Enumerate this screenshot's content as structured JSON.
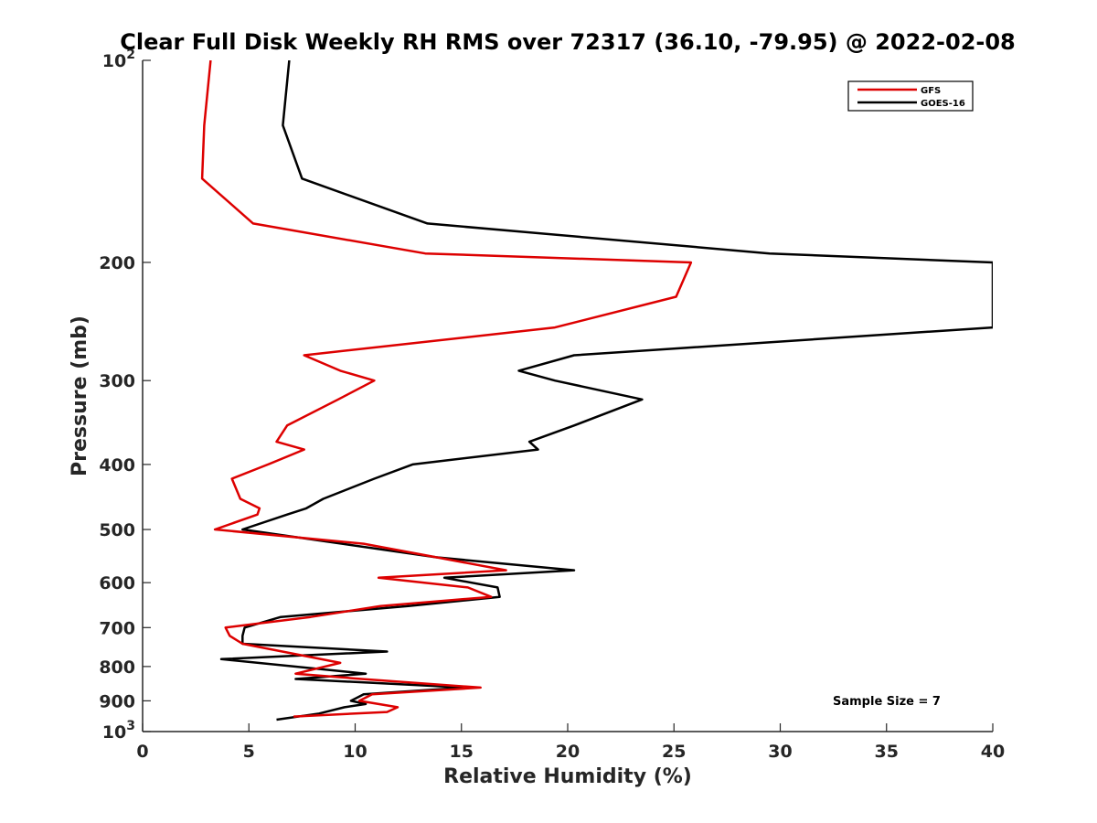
{
  "chart_data": {
    "type": "line",
    "title": "Clear Full Disk Weekly RH RMS over 72317 (36.10, -79.95) @ 2022-02-08",
    "xlabel": "Relative Humidity (%)",
    "ylabel": "Pressure (mb)",
    "xlim": [
      0,
      40
    ],
    "ylim": [
      100,
      1000
    ],
    "yscale": "log",
    "y_reversed": true,
    "grid": false,
    "x_ticks": [
      0,
      5,
      10,
      15,
      20,
      25,
      30,
      35,
      40
    ],
    "x_tick_labels": [
      "0",
      "5",
      "10",
      "15",
      "20",
      "25",
      "30",
      "35",
      "40"
    ],
    "y_ticks": [
      100,
      200,
      300,
      400,
      500,
      600,
      700,
      800,
      900,
      1000
    ],
    "y_tick_labels": [
      {
        "base": "10",
        "exp": "2"
      },
      {
        "base": "200",
        "exp": ""
      },
      {
        "base": "300",
        "exp": ""
      },
      {
        "base": "400",
        "exp": ""
      },
      {
        "base": "500",
        "exp": ""
      },
      {
        "base": "600",
        "exp": ""
      },
      {
        "base": "700",
        "exp": ""
      },
      {
        "base": "800",
        "exp": ""
      },
      {
        "base": "900",
        "exp": ""
      },
      {
        "base": "10",
        "exp": "3"
      }
    ],
    "legend_position": "top-right",
    "annotation": "Sample Size = 7",
    "series": [
      {
        "name": "GFS",
        "color": "#dd0000",
        "points": [
          [
            3.2,
            100
          ],
          [
            2.9,
            125
          ],
          [
            2.8,
            150
          ],
          [
            5.2,
            175
          ],
          [
            13.3,
            194
          ],
          [
            25.8,
            200
          ],
          [
            25.1,
            225
          ],
          [
            19.4,
            250
          ],
          [
            7.6,
            275
          ],
          [
            9.3,
            290
          ],
          [
            10.9,
            300
          ],
          [
            9.2,
            320
          ],
          [
            6.8,
            350
          ],
          [
            6.3,
            370
          ],
          [
            7.6,
            380
          ],
          [
            5.9,
            400
          ],
          [
            4.2,
            420
          ],
          [
            4.6,
            450
          ],
          [
            5.5,
            465
          ],
          [
            5.4,
            475
          ],
          [
            3.4,
            500
          ],
          [
            10.4,
            525
          ],
          [
            17.1,
            575
          ],
          [
            11.1,
            590
          ],
          [
            15.3,
            610
          ],
          [
            16.4,
            630
          ],
          [
            11.2,
            650
          ],
          [
            7.9,
            675
          ],
          [
            3.9,
            700
          ],
          [
            4.1,
            720
          ],
          [
            4.7,
            740
          ],
          [
            9.3,
            790
          ],
          [
            7.2,
            820
          ],
          [
            10.3,
            835
          ],
          [
            15.9,
            860
          ],
          [
            10.8,
            880
          ],
          [
            10.2,
            900
          ],
          [
            12.0,
            920
          ],
          [
            11.5,
            935
          ],
          [
            7.1,
            950
          ]
        ]
      },
      {
        "name": "GOES-16",
        "color": "#000000",
        "points": [
          [
            6.9,
            100
          ],
          [
            6.6,
            125
          ],
          [
            7.5,
            150
          ],
          [
            13.4,
            175
          ],
          [
            29.5,
            194
          ],
          [
            40.0,
            200
          ],
          [
            40.0,
            225
          ],
          [
            40.0,
            250
          ],
          [
            20.3,
            275
          ],
          [
            17.7,
            290
          ],
          [
            19.4,
            300
          ],
          [
            23.5,
            320
          ],
          [
            20.3,
            350
          ],
          [
            18.2,
            370
          ],
          [
            18.6,
            380
          ],
          [
            12.7,
            400
          ],
          [
            10.9,
            420
          ],
          [
            8.5,
            450
          ],
          [
            7.7,
            465
          ],
          [
            6.8,
            475
          ],
          [
            4.7,
            500
          ],
          [
            13.8,
            550
          ],
          [
            20.3,
            575
          ],
          [
            14.2,
            590
          ],
          [
            16.7,
            610
          ],
          [
            16.8,
            630
          ],
          [
            12.5,
            650
          ],
          [
            6.5,
            675
          ],
          [
            4.8,
            700
          ],
          [
            4.7,
            720
          ],
          [
            4.7,
            740
          ],
          [
            11.5,
            760
          ],
          [
            3.7,
            780
          ],
          [
            10.5,
            820
          ],
          [
            7.2,
            835
          ],
          [
            15.2,
            860
          ],
          [
            10.4,
            880
          ],
          [
            9.8,
            900
          ],
          [
            10.5,
            910
          ],
          [
            9.5,
            920
          ],
          [
            8.3,
            940
          ],
          [
            6.3,
            960
          ]
        ]
      }
    ]
  }
}
